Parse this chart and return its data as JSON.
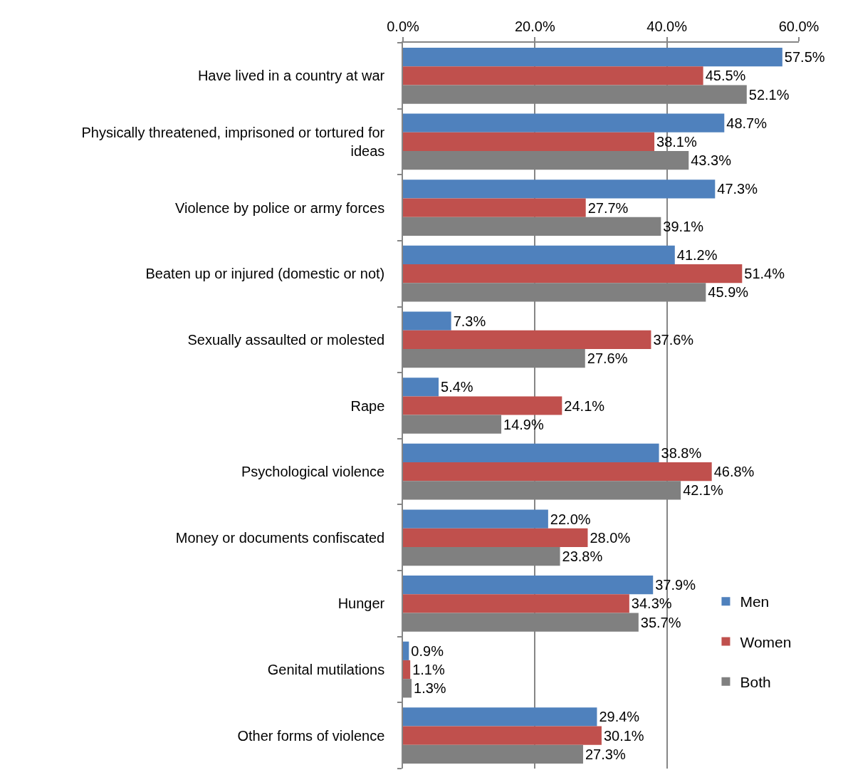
{
  "chart_data": {
    "type": "bar",
    "orientation": "horizontal",
    "categories": [
      "Have lived in a country at war",
      "Physically threatened, imprisoned or tortured for ideas",
      "Violence by police or army forces",
      "Beaten up or injured (domestic or not)",
      "Sexually assaulted or molested",
      "Rape",
      "Psychological violence",
      "Money or documents confiscated",
      "Hunger",
      "Genital mutilations",
      "Other forms of violence"
    ],
    "series": [
      {
        "name": "Men",
        "color": "#4f81bd",
        "values": [
          57.5,
          48.7,
          47.3,
          41.2,
          7.3,
          5.4,
          38.8,
          22.0,
          37.9,
          0.9,
          29.4
        ],
        "value_labels": [
          "57.5%",
          "48.7%",
          "47.3%",
          "41.2%",
          "7.3%",
          "5.4%",
          "38.8%",
          "22.0%",
          "37.9%",
          "0.9%",
          "29.4%"
        ]
      },
      {
        "name": "Women",
        "color": "#c0504d",
        "values": [
          45.5,
          38.1,
          27.7,
          51.4,
          37.6,
          24.1,
          46.8,
          28.0,
          34.3,
          1.1,
          30.1
        ],
        "value_labels": [
          "45.5%",
          "38.1%",
          "27.7%",
          "51.4%",
          "37.6%",
          "24.1%",
          "46.8%",
          "28.0%",
          "34.3%",
          "1.1%",
          "30.1%"
        ]
      },
      {
        "name": "Both",
        "color": "#808080",
        "values": [
          52.1,
          43.3,
          39.1,
          45.9,
          27.6,
          14.9,
          42.1,
          23.8,
          35.7,
          1.3,
          27.3
        ],
        "value_labels": [
          "52.1%",
          "43.3%",
          "39.1%",
          "45.9%",
          "27.6%",
          "14.9%",
          "42.1%",
          "23.8%",
          "35.7%",
          "1.3%",
          "27.3%"
        ]
      }
    ],
    "xlim": [
      0,
      60
    ],
    "xticks": [
      {
        "value": 0,
        "label": "0.0%"
      },
      {
        "value": 20,
        "label": "20.0%"
      },
      {
        "value": 40,
        "label": "40.0%"
      },
      {
        "value": 60,
        "label": "60.0%"
      }
    ],
    "grid": "x",
    "legend": "bottom right"
  }
}
